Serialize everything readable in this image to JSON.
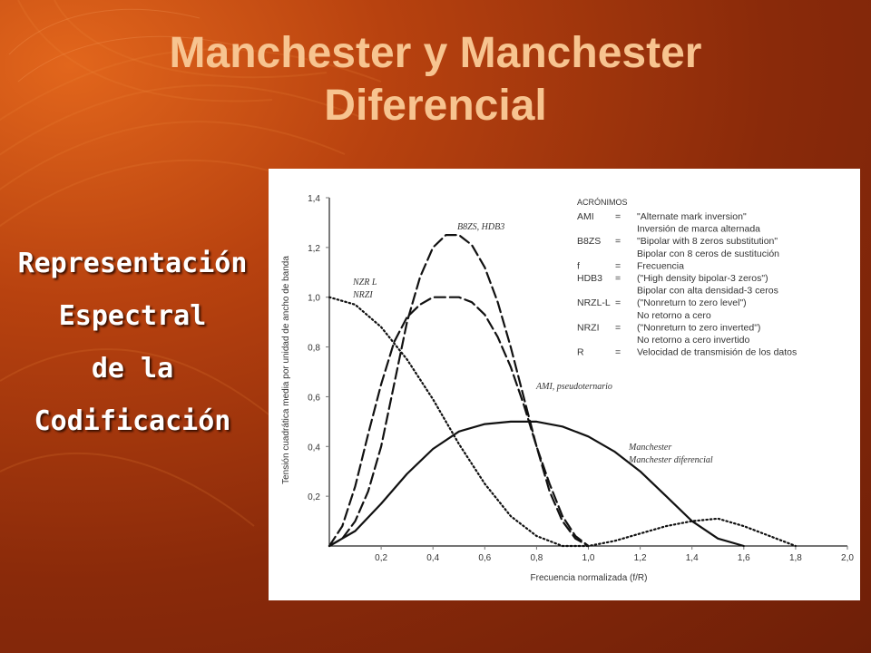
{
  "slide": {
    "title_line1": "Manchester y Manchester",
    "title_line2": "Diferencial",
    "left_lines": [
      "Representación",
      "Espectral",
      "de la",
      "Codificación"
    ]
  },
  "colors": {
    "title": "#f7c490",
    "left_text": "#ffffff",
    "background": "#8a2a0a"
  },
  "chart_data": {
    "type": "line",
    "xlabel": "Frecuencia normalizada (f/R)",
    "ylabel": "Tensión cuadrática media por unidad de ancho de banda",
    "xlim": [
      0,
      2.0
    ],
    "ylim": [
      0,
      1.4
    ],
    "x_ticks": [
      "0,2",
      "0,4",
      "0,6",
      "0,8",
      "1,0",
      "1,2",
      "1,4",
      "1,6",
      "1,8",
      "2,0"
    ],
    "y_ticks": [
      "0,2",
      "0,4",
      "0,6",
      "0,8",
      "1,0",
      "1,2",
      "1,4"
    ],
    "grid": false,
    "series": [
      {
        "name": "NZR-L, NRZI",
        "style": "dotted",
        "x": [
          0,
          0.1,
          0.2,
          0.3,
          0.4,
          0.5,
          0.6,
          0.7,
          0.8,
          0.9,
          1.0,
          1.1,
          1.2,
          1.3,
          1.4,
          1.5,
          1.6,
          1.7,
          1.8
        ],
        "y": [
          1.0,
          0.97,
          0.88,
          0.75,
          0.59,
          0.41,
          0.25,
          0.12,
          0.04,
          0.0,
          0.0,
          0.02,
          0.05,
          0.08,
          0.1,
          0.11,
          0.08,
          0.04,
          0.0
        ]
      },
      {
        "name": "B8ZS, HDB3",
        "style": "dashed",
        "x": [
          0,
          0.05,
          0.1,
          0.15,
          0.2,
          0.25,
          0.3,
          0.35,
          0.4,
          0.45,
          0.5,
          0.55,
          0.6,
          0.65,
          0.7,
          0.75,
          0.8,
          0.85,
          0.9,
          0.95,
          1.0
        ],
        "y": [
          0,
          0.03,
          0.1,
          0.22,
          0.4,
          0.65,
          0.9,
          1.08,
          1.2,
          1.25,
          1.25,
          1.21,
          1.12,
          0.98,
          0.8,
          0.6,
          0.4,
          0.22,
          0.1,
          0.03,
          0
        ]
      },
      {
        "name": "AMI, pseudoternario",
        "style": "dashed",
        "x": [
          0,
          0.05,
          0.1,
          0.15,
          0.2,
          0.25,
          0.3,
          0.35,
          0.4,
          0.45,
          0.5,
          0.55,
          0.6,
          0.65,
          0.7,
          0.75,
          0.8,
          0.85,
          0.9,
          0.95,
          1.0
        ],
        "y": [
          0,
          0.08,
          0.24,
          0.45,
          0.65,
          0.82,
          0.92,
          0.97,
          1.0,
          1.0,
          1.0,
          0.98,
          0.93,
          0.84,
          0.72,
          0.57,
          0.4,
          0.25,
          0.12,
          0.04,
          0
        ]
      },
      {
        "name": "Manchester / Manchester diferencial",
        "style": "solid",
        "x": [
          0,
          0.1,
          0.2,
          0.3,
          0.4,
          0.5,
          0.6,
          0.7,
          0.8,
          0.9,
          1.0,
          1.1,
          1.2,
          1.3,
          1.4,
          1.5,
          1.6
        ],
        "y": [
          0,
          0.06,
          0.17,
          0.29,
          0.39,
          0.46,
          0.49,
          0.5,
          0.5,
          0.48,
          0.44,
          0.38,
          0.3,
          0.2,
          0.1,
          0.03,
          0.0
        ]
      }
    ],
    "curve_labels": {
      "nrz_line1": "NZR L",
      "nrz_line2": "NRZI",
      "b8zs": "B8ZS, HDB3",
      "ami": "AMI, pseudoternario",
      "man_line1": "Manchester",
      "man_line2": "Manchester diferencial"
    },
    "legend_title": "ACRÓNIMOS",
    "legend": [
      [
        "AMI",
        "=",
        "\"Alternate mark inversion\""
      ],
      [
        "",
        "",
        "Inversión de marca alternada"
      ],
      [
        "B8ZS",
        "=",
        "\"Bipolar with 8 zeros substitution\""
      ],
      [
        "",
        "",
        "Bipolar con 8 ceros de sustitución"
      ],
      [
        "f",
        "=",
        "Frecuencia"
      ],
      [
        "HDB3",
        "=",
        "(\"High density bipolar-3 zeros\")"
      ],
      [
        "",
        "",
        "Bipolar con alta densidad-3 ceros"
      ],
      [
        "NRZL-L",
        "=",
        "(\"Nonreturn to zero level\")"
      ],
      [
        "",
        "",
        "No retorno a cero"
      ],
      [
        "NRZI",
        "=",
        "(\"Nonreturn to zero inverted\")"
      ],
      [
        "",
        "",
        "No retorno a cero invertido"
      ],
      [
        "R",
        "=",
        "Velocidad de transmisión de los datos"
      ]
    ]
  }
}
